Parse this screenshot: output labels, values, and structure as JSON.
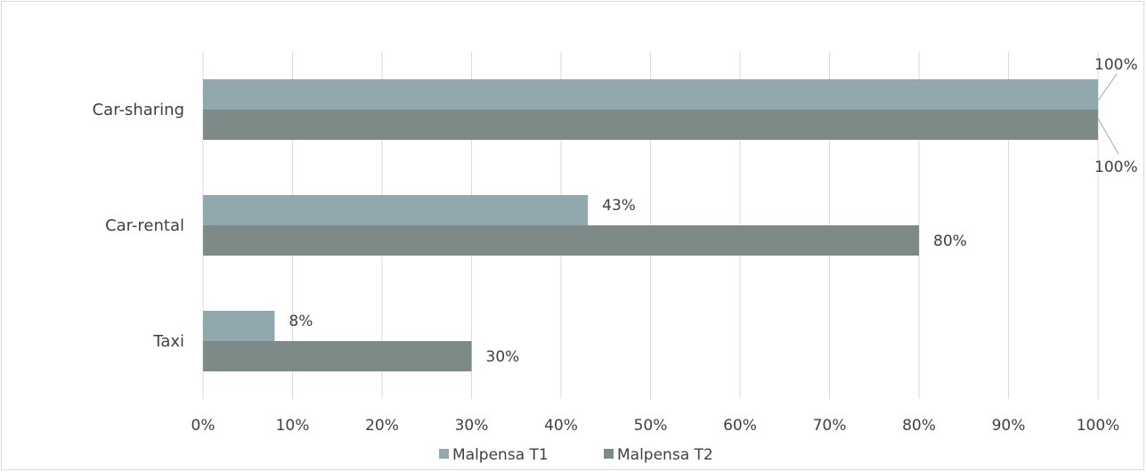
{
  "chart_data": {
    "type": "bar",
    "orientation": "horizontal",
    "categories": [
      "Car-sharing",
      "Car-rental",
      "Taxi"
    ],
    "series": [
      {
        "name": "Malpensa T1",
        "values": [
          100,
          43,
          8
        ],
        "color": "#91a9ae"
      },
      {
        "name": "Malpensa T2",
        "values": [
          100,
          80,
          30
        ],
        "color": "#7d8a88"
      }
    ],
    "data_labels": [
      [
        "100%",
        "43%",
        "8%"
      ],
      [
        "100%",
        "80%",
        "30%"
      ]
    ],
    "xlim": [
      0,
      100
    ],
    "x_ticks": [
      0,
      10,
      20,
      30,
      40,
      50,
      60,
      70,
      80,
      90,
      100
    ],
    "x_tick_labels": [
      "0%",
      "10%",
      "20%",
      "30%",
      "40%",
      "50%",
      "60%",
      "70%",
      "80%",
      "90%",
      "100%"
    ],
    "grid": "vertical",
    "legend_position": "bottom",
    "gridline_color": "#d9d9d9"
  }
}
